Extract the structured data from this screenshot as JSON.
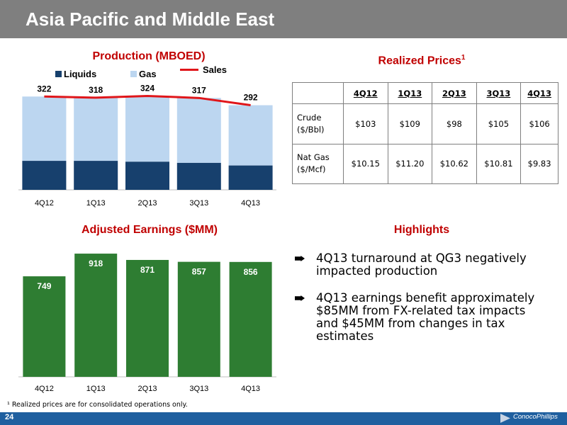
{
  "title": "Asia Pacific and Middle East",
  "production": {
    "heading": "Production (MBOED)",
    "legend": {
      "liquids": "Liquids",
      "gas": "Gas",
      "sales": "Sales"
    },
    "colors": {
      "liquids": "#17406d",
      "gas": "#bcd6f0",
      "sales": "#e0161a"
    }
  },
  "prices": {
    "heading": "Realized Prices",
    "heading_sup": "1",
    "columns": [
      "4Q12",
      "1Q13",
      "2Q13",
      "3Q13",
      "4Q13"
    ],
    "rows": [
      {
        "label_line1": "Crude",
        "label_line2": "($/Bbl)",
        "values": [
          "$103",
          "$109",
          "$98",
          "$105",
          "$106"
        ]
      },
      {
        "label_line1": "Nat Gas",
        "label_line2": "($/Mcf)",
        "values": [
          "$10.15",
          "$11.20",
          "$10.62",
          "$10.81",
          "$9.83"
        ]
      }
    ]
  },
  "earnings": {
    "heading": "Adjusted Earnings ($MM)",
    "color": "#2e7d32"
  },
  "highlights": {
    "heading": "Highlights",
    "items": [
      "4Q13 turnaround at QG3 negatively impacted production",
      "4Q13 earnings benefit approximately $85MM from FX-related tax impacts and $45MM from changes in tax estimates"
    ]
  },
  "footnote": "¹ Realized prices are for consolidated operations only.",
  "page_number": "24",
  "logo_text": "ConocoPhillips",
  "chart_data": [
    {
      "type": "bar",
      "stacked": true,
      "title": "Production (MBOED)",
      "categories": [
        "4Q12",
        "1Q13",
        "2Q13",
        "3Q13",
        "4Q13"
      ],
      "series": [
        {
          "name": "Liquids",
          "values": [
            100,
            100,
            97,
            93,
            84
          ]
        },
        {
          "name": "Gas",
          "values": [
            222,
            218,
            227,
            224,
            208
          ]
        },
        {
          "name": "Sales",
          "type": "line",
          "values": [
            322,
            318,
            324,
            317,
            292
          ]
        }
      ],
      "data_labels": [
        "322",
        "318",
        "324",
        "317",
        "292"
      ],
      "ylim": [
        0,
        330
      ],
      "legend_position": "top"
    },
    {
      "type": "bar",
      "title": "Adjusted Earnings ($MM)",
      "categories": [
        "4Q12",
        "1Q13",
        "2Q13",
        "3Q13",
        "4Q13"
      ],
      "values": [
        749,
        918,
        871,
        857,
        856
      ],
      "ylim": [
        0,
        950
      ]
    }
  ]
}
